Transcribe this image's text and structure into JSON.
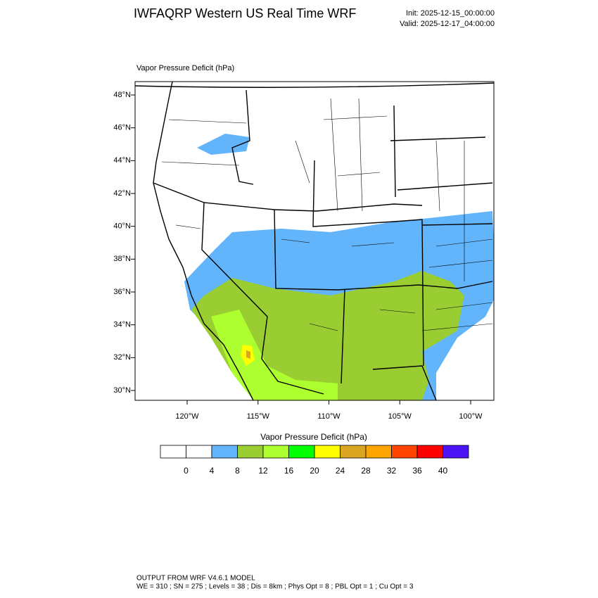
{
  "header": {
    "title": "IWFAQRP Western US Real Time WRF",
    "init": "Init: 2025-12-15_00:00:00",
    "valid": "Valid: 2025-12-17_04:00:00"
  },
  "map": {
    "field_label": "Vapor Pressure Deficit   (hPa)",
    "lat_labels": [
      "48°N",
      "46°N",
      "44°N",
      "42°N",
      "40°N",
      "38°N",
      "36°N",
      "34°N",
      "32°N",
      "30°N"
    ],
    "lon_labels": [
      "120°W",
      "115°W",
      "110°W",
      "105°W",
      "100°W"
    ]
  },
  "colorbar": {
    "title": "Vapor Pressure Deficit  (hPa)",
    "colors": [
      "#ffffff",
      "#ffffff",
      "#62b5fb",
      "#9acd32",
      "#adff2f",
      "#00ff00",
      "#ffff00",
      "#daa520",
      "#ffa500",
      "#ff4500",
      "#ff0000",
      "#4b14f5"
    ],
    "ticks": [
      0,
      4,
      8,
      12,
      16,
      20,
      24,
      28,
      32,
      36,
      40
    ]
  },
  "footer": {
    "line1": "OUTPUT FROM WRF V4.6.1 MODEL",
    "line2": "WE = 310 ; SN = 275 ; Levels = 38 ; Dis = 8km ; Phys Opt = 8 ; PBL Opt = 1 ; Cu Opt = 3"
  }
}
